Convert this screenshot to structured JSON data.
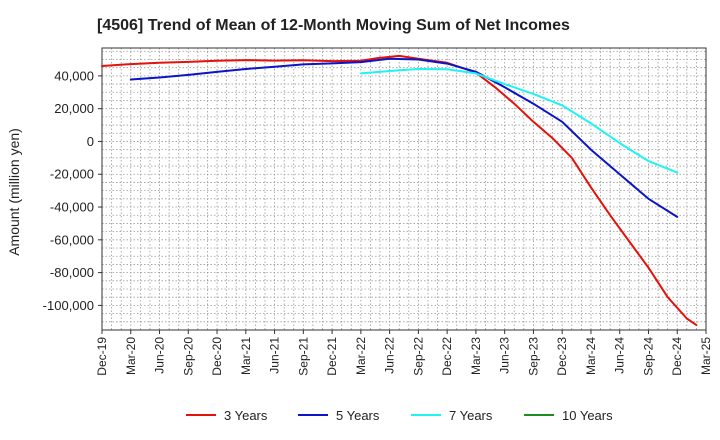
{
  "chart_data": {
    "type": "line",
    "title": "[4506]  Trend of Mean of 12-Month Moving Sum of Net Incomes",
    "xlabel": "",
    "ylabel": "Amount (million yen)",
    "ylim": [
      -115000,
      57000
    ],
    "y_ticks": [
      40000,
      20000,
      0,
      -20000,
      -40000,
      -60000,
      -80000,
      -100000
    ],
    "y_tick_labels": [
      "40,000",
      "20,000",
      "0",
      "-20,000",
      "-40,000",
      "-60,000",
      "-80,000",
      "-100,000"
    ],
    "x_tick_labels": [
      "Dec-19",
      "Mar-20",
      "Jun-20",
      "Sep-20",
      "Dec-20",
      "Mar-21",
      "Jun-21",
      "Sep-21",
      "Dec-21",
      "Mar-22",
      "Jun-22",
      "Sep-22",
      "Dec-22",
      "Mar-23",
      "Jun-23",
      "Sep-23",
      "Dec-23",
      "Mar-24",
      "Jun-24",
      "Sep-24",
      "Dec-24",
      "Mar-25"
    ],
    "x_range": [
      "2019-12",
      "2025-03"
    ],
    "grid": true,
    "legend_position": "bottom",
    "series": [
      {
        "name": "3 Years",
        "color": "#e3120b",
        "points": [
          [
            "2019-12",
            46000
          ],
          [
            "2020-03",
            47200
          ],
          [
            "2020-06",
            48000
          ],
          [
            "2020-09",
            48500
          ],
          [
            "2020-12",
            49200
          ],
          [
            "2021-03",
            49600
          ],
          [
            "2021-06",
            49300
          ],
          [
            "2021-09",
            49500
          ],
          [
            "2021-12",
            49000
          ],
          [
            "2022-03",
            49200
          ],
          [
            "2022-05",
            51000
          ],
          [
            "2022-07",
            52200
          ],
          [
            "2022-09",
            50500
          ],
          [
            "2022-12",
            48000
          ],
          [
            "2023-03",
            42000
          ],
          [
            "2023-05",
            33000
          ],
          [
            "2023-07",
            23000
          ],
          [
            "2023-09",
            12000
          ],
          [
            "2023-11",
            2000
          ],
          [
            "2024-01",
            -10000
          ],
          [
            "2024-03",
            -28000
          ],
          [
            "2024-05",
            -45000
          ],
          [
            "2024-07",
            -61000
          ],
          [
            "2024-09",
            -77000
          ],
          [
            "2024-11",
            -95000
          ],
          [
            "2025-01",
            -108000
          ],
          [
            "2025-02",
            -112000
          ]
        ]
      },
      {
        "name": "5 Years",
        "color": "#0a14c8",
        "points": [
          [
            "2020-03",
            37800
          ],
          [
            "2020-06",
            39000
          ],
          [
            "2020-09",
            40600
          ],
          [
            "2020-12",
            42400
          ],
          [
            "2021-03",
            44200
          ],
          [
            "2021-06",
            45600
          ],
          [
            "2021-09",
            47000
          ],
          [
            "2021-12",
            47600
          ],
          [
            "2022-03",
            48400
          ],
          [
            "2022-06",
            50500
          ],
          [
            "2022-09",
            50000
          ],
          [
            "2022-12",
            47500
          ],
          [
            "2023-03",
            42500
          ],
          [
            "2023-06",
            33000
          ],
          [
            "2023-09",
            23000
          ],
          [
            "2023-12",
            12000
          ],
          [
            "2024-03",
            -5000
          ],
          [
            "2024-06",
            -20000
          ],
          [
            "2024-09",
            -35000
          ],
          [
            "2024-12",
            -46000
          ]
        ]
      },
      {
        "name": "7 Years",
        "color": "#1ff3f3",
        "points": [
          [
            "2022-03",
            41500
          ],
          [
            "2022-06",
            43000
          ],
          [
            "2022-09",
            44200
          ],
          [
            "2022-12",
            44000
          ],
          [
            "2023-03",
            41500
          ],
          [
            "2023-06",
            35000
          ],
          [
            "2023-09",
            29000
          ],
          [
            "2023-12",
            22000
          ],
          [
            "2024-03",
            11000
          ],
          [
            "2024-06",
            -1000
          ],
          [
            "2024-09",
            -12000
          ],
          [
            "2024-12",
            -19000
          ]
        ]
      },
      {
        "name": "10 Years",
        "color": "#1e8c1e",
        "points": []
      }
    ]
  }
}
